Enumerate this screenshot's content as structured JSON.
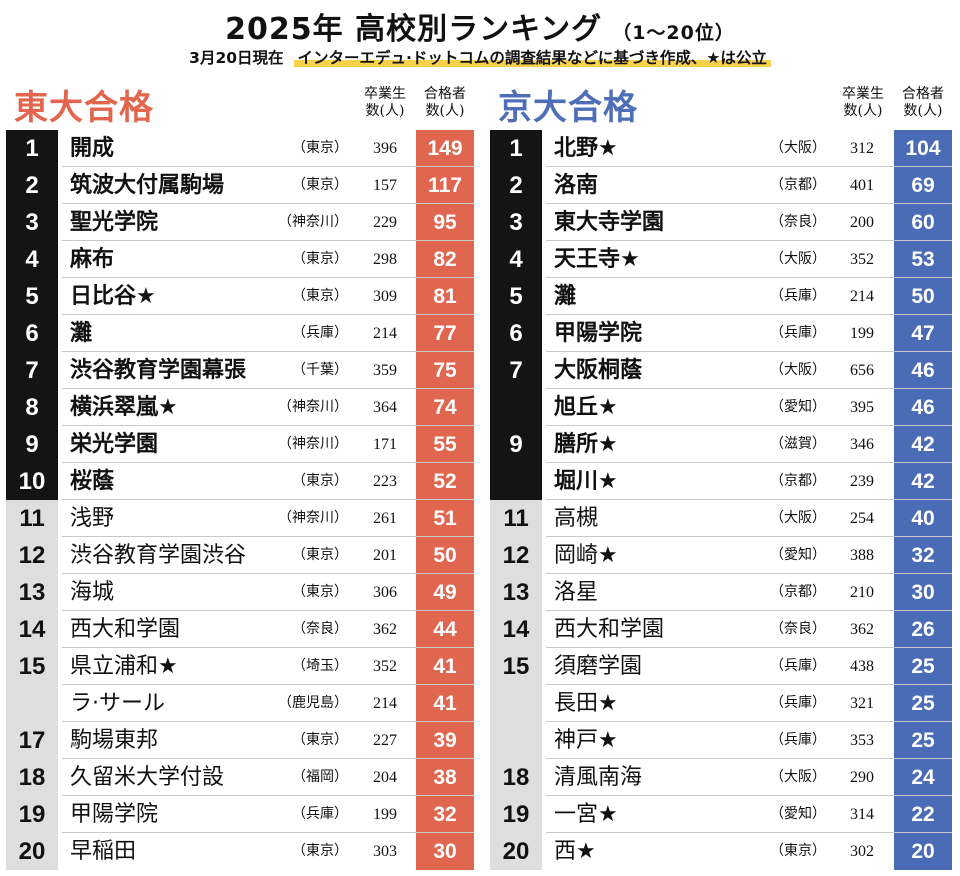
{
  "header": {
    "title": "2025年 高校別ランキング",
    "title_range": "（1～20位）",
    "subtitle_date": "3月20日現在",
    "subtitle_note": "インターエデュ·ドットコムの調査結果などに基づき作成、★は公立"
  },
  "todai": {
    "heading": "東大合格",
    "col_graduates": "卒業生\n数(人)",
    "col_passers": "合格者\n数(人)",
    "rows": [
      {
        "rank": "1",
        "name": "開成",
        "pref": "（東京）",
        "graduates": "396",
        "passers": "149"
      },
      {
        "rank": "2",
        "name": "筑波大付属駒場",
        "pref": "（東京）",
        "graduates": "157",
        "passers": "117"
      },
      {
        "rank": "3",
        "name": "聖光学院",
        "pref": "（神奈川）",
        "graduates": "229",
        "passers": "95"
      },
      {
        "rank": "4",
        "name": "麻布",
        "pref": "（東京）",
        "graduates": "298",
        "passers": "82"
      },
      {
        "rank": "5",
        "name": "日比谷★",
        "pref": "（東京）",
        "graduates": "309",
        "passers": "81"
      },
      {
        "rank": "6",
        "name": "灘",
        "pref": "（兵庫）",
        "graduates": "214",
        "passers": "77"
      },
      {
        "rank": "7",
        "name": "渋谷教育学園幕張",
        "pref": "（千葉）",
        "graduates": "359",
        "passers": "75"
      },
      {
        "rank": "8",
        "name": "横浜翠嵐★",
        "pref": "（神奈川）",
        "graduates": "364",
        "passers": "74"
      },
      {
        "rank": "9",
        "name": "栄光学園",
        "pref": "（神奈川）",
        "graduates": "171",
        "passers": "55"
      },
      {
        "rank": "10",
        "name": "桜蔭",
        "pref": "（東京）",
        "graduates": "223",
        "passers": "52"
      },
      {
        "rank": "11",
        "name": "浅野",
        "pref": "（神奈川）",
        "graduates": "261",
        "passers": "51"
      },
      {
        "rank": "12",
        "name": "渋谷教育学園渋谷",
        "pref": "（東京）",
        "graduates": "201",
        "passers": "50"
      },
      {
        "rank": "13",
        "name": "海城",
        "pref": "（東京）",
        "graduates": "306",
        "passers": "49"
      },
      {
        "rank": "14",
        "name": "西大和学園",
        "pref": "（奈良）",
        "graduates": "362",
        "passers": "44"
      },
      {
        "rank": "15",
        "name": "県立浦和★",
        "pref": "（埼玉）",
        "graduates": "352",
        "passers": "41"
      },
      {
        "rank": "",
        "name": "ラ·サール",
        "pref": "（鹿児島）",
        "graduates": "214",
        "passers": "41"
      },
      {
        "rank": "17",
        "name": "駒場東邦",
        "pref": "（東京）",
        "graduates": "227",
        "passers": "39"
      },
      {
        "rank": "18",
        "name": "久留米大学付設",
        "pref": "（福岡）",
        "graduates": "204",
        "passers": "38"
      },
      {
        "rank": "19",
        "name": "甲陽学院",
        "pref": "（兵庫）",
        "graduates": "199",
        "passers": "32"
      },
      {
        "rank": "20",
        "name": "早稲田",
        "pref": "（東京）",
        "graduates": "303",
        "passers": "30"
      }
    ]
  },
  "kyodai": {
    "heading": "京大合格",
    "col_graduates": "卒業生\n数(人)",
    "col_passers": "合格者\n数(人)",
    "rows": [
      {
        "rank": "1",
        "name": "北野★",
        "pref": "（大阪）",
        "graduates": "312",
        "passers": "104"
      },
      {
        "rank": "2",
        "name": "洛南",
        "pref": "（京都）",
        "graduates": "401",
        "passers": "69"
      },
      {
        "rank": "3",
        "name": "東大寺学園",
        "pref": "（奈良）",
        "graduates": "200",
        "passers": "60"
      },
      {
        "rank": "4",
        "name": "天王寺★",
        "pref": "（大阪）",
        "graduates": "352",
        "passers": "53"
      },
      {
        "rank": "5",
        "name": "灘",
        "pref": "（兵庫）",
        "graduates": "214",
        "passers": "50"
      },
      {
        "rank": "6",
        "name": "甲陽学院",
        "pref": "（兵庫）",
        "graduates": "199",
        "passers": "47"
      },
      {
        "rank": "7",
        "name": "大阪桐蔭",
        "pref": "（大阪）",
        "graduates": "656",
        "passers": "46"
      },
      {
        "rank": "",
        "name": "旭丘★",
        "pref": "（愛知）",
        "graduates": "395",
        "passers": "46"
      },
      {
        "rank": "9",
        "name": "膳所★",
        "pref": "（滋賀）",
        "graduates": "346",
        "passers": "42"
      },
      {
        "rank": "",
        "name": "堀川★",
        "pref": "（京都）",
        "graduates": "239",
        "passers": "42"
      },
      {
        "rank": "11",
        "name": "高槻",
        "pref": "（大阪）",
        "graduates": "254",
        "passers": "40"
      },
      {
        "rank": "12",
        "name": "岡崎★",
        "pref": "（愛知）",
        "graduates": "388",
        "passers": "32"
      },
      {
        "rank": "13",
        "name": "洛星",
        "pref": "（京都）",
        "graduates": "210",
        "passers": "30"
      },
      {
        "rank": "14",
        "name": "西大和学園",
        "pref": "（奈良）",
        "graduates": "362",
        "passers": "26"
      },
      {
        "rank": "15",
        "name": "須磨学園",
        "pref": "（兵庫）",
        "graduates": "438",
        "passers": "25"
      },
      {
        "rank": "",
        "name": "長田★",
        "pref": "（兵庫）",
        "graduates": "321",
        "passers": "25"
      },
      {
        "rank": "",
        "name": "神戸★",
        "pref": "（兵庫）",
        "graduates": "353",
        "passers": "25"
      },
      {
        "rank": "18",
        "name": "清風南海",
        "pref": "（大阪）",
        "graduates": "290",
        "passers": "24"
      },
      {
        "rank": "19",
        "name": "一宮★",
        "pref": "（愛知）",
        "graduates": "314",
        "passers": "22"
      },
      {
        "rank": "20",
        "name": "西★",
        "pref": "（東京）",
        "graduates": "302",
        "passers": "20"
      }
    ]
  },
  "colors": {
    "todai_accent": "#e1664f",
    "kyodai_accent": "#4a6bb5",
    "top10_rank_bg": "#141414",
    "lower_rank_bg": "#dedede"
  }
}
